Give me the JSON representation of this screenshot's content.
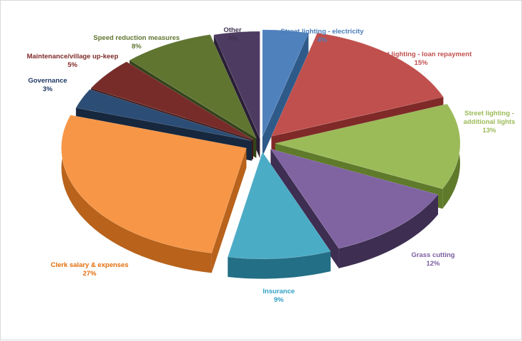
{
  "chart_data": {
    "type": "pie",
    "style": "3d-exploded",
    "title": "",
    "slices": [
      {
        "label_lines": [
          "Street lighting - electricity"
        ],
        "pct_text": "4%",
        "value": 4,
        "color": "#4f81bd",
        "side": "#2e5a8a",
        "label_color": "#4a7ebb"
      },
      {
        "label_lines": [
          "Street lighting - loan repayment"
        ],
        "pct_text": "15%",
        "value": 15,
        "color": "#c0504d",
        "side": "#7f2a28",
        "label_color": "#c0504d"
      },
      {
        "label_lines": [
          "Street lighting -",
          "additional lights"
        ],
        "pct_text": "13%",
        "value": 13,
        "color": "#9bbb59",
        "side": "#5f7a2a",
        "label_color": "#9bbb59"
      },
      {
        "label_lines": [
          "Grass cutting"
        ],
        "pct_text": "12%",
        "value": 12,
        "color": "#8064a2",
        "side": "#3d2e52",
        "label_color": "#7b5fa0"
      },
      {
        "label_lines": [
          "Insurance"
        ],
        "pct_text": "9%",
        "value": 9,
        "color": "#4bacc6",
        "side": "#236f86",
        "label_color": "#31a0c4"
      },
      {
        "label_lines": [
          "Clerk salary & expenses"
        ],
        "pct_text": "27%",
        "value": 27,
        "color": "#f79646",
        "side": "#b8621b",
        "label_color": "#e36c09"
      },
      {
        "label_lines": [
          "Governance"
        ],
        "pct_text": "3%",
        "value": 3,
        "color": "#2c4d75",
        "side": "#16273e",
        "label_color": "#1f3864"
      },
      {
        "label_lines": [
          "Maintenance/village  up-keep"
        ],
        "pct_text": "5%",
        "value": 5,
        "color": "#772c2a",
        "side": "#411716",
        "label_color": "#7f2a28"
      },
      {
        "label_lines": [
          "Speed reduction measures"
        ],
        "pct_text": "8%",
        "value": 8,
        "color": "#5f7530",
        "side": "#34431a",
        "label_color": "#5f7530"
      },
      {
        "label_lines": [
          "Other"
        ],
        "pct_text": "4%",
        "value": 4,
        "color": "#4d3b62",
        "side": "#2a1f36",
        "label_color": "#3f3151"
      }
    ]
  }
}
